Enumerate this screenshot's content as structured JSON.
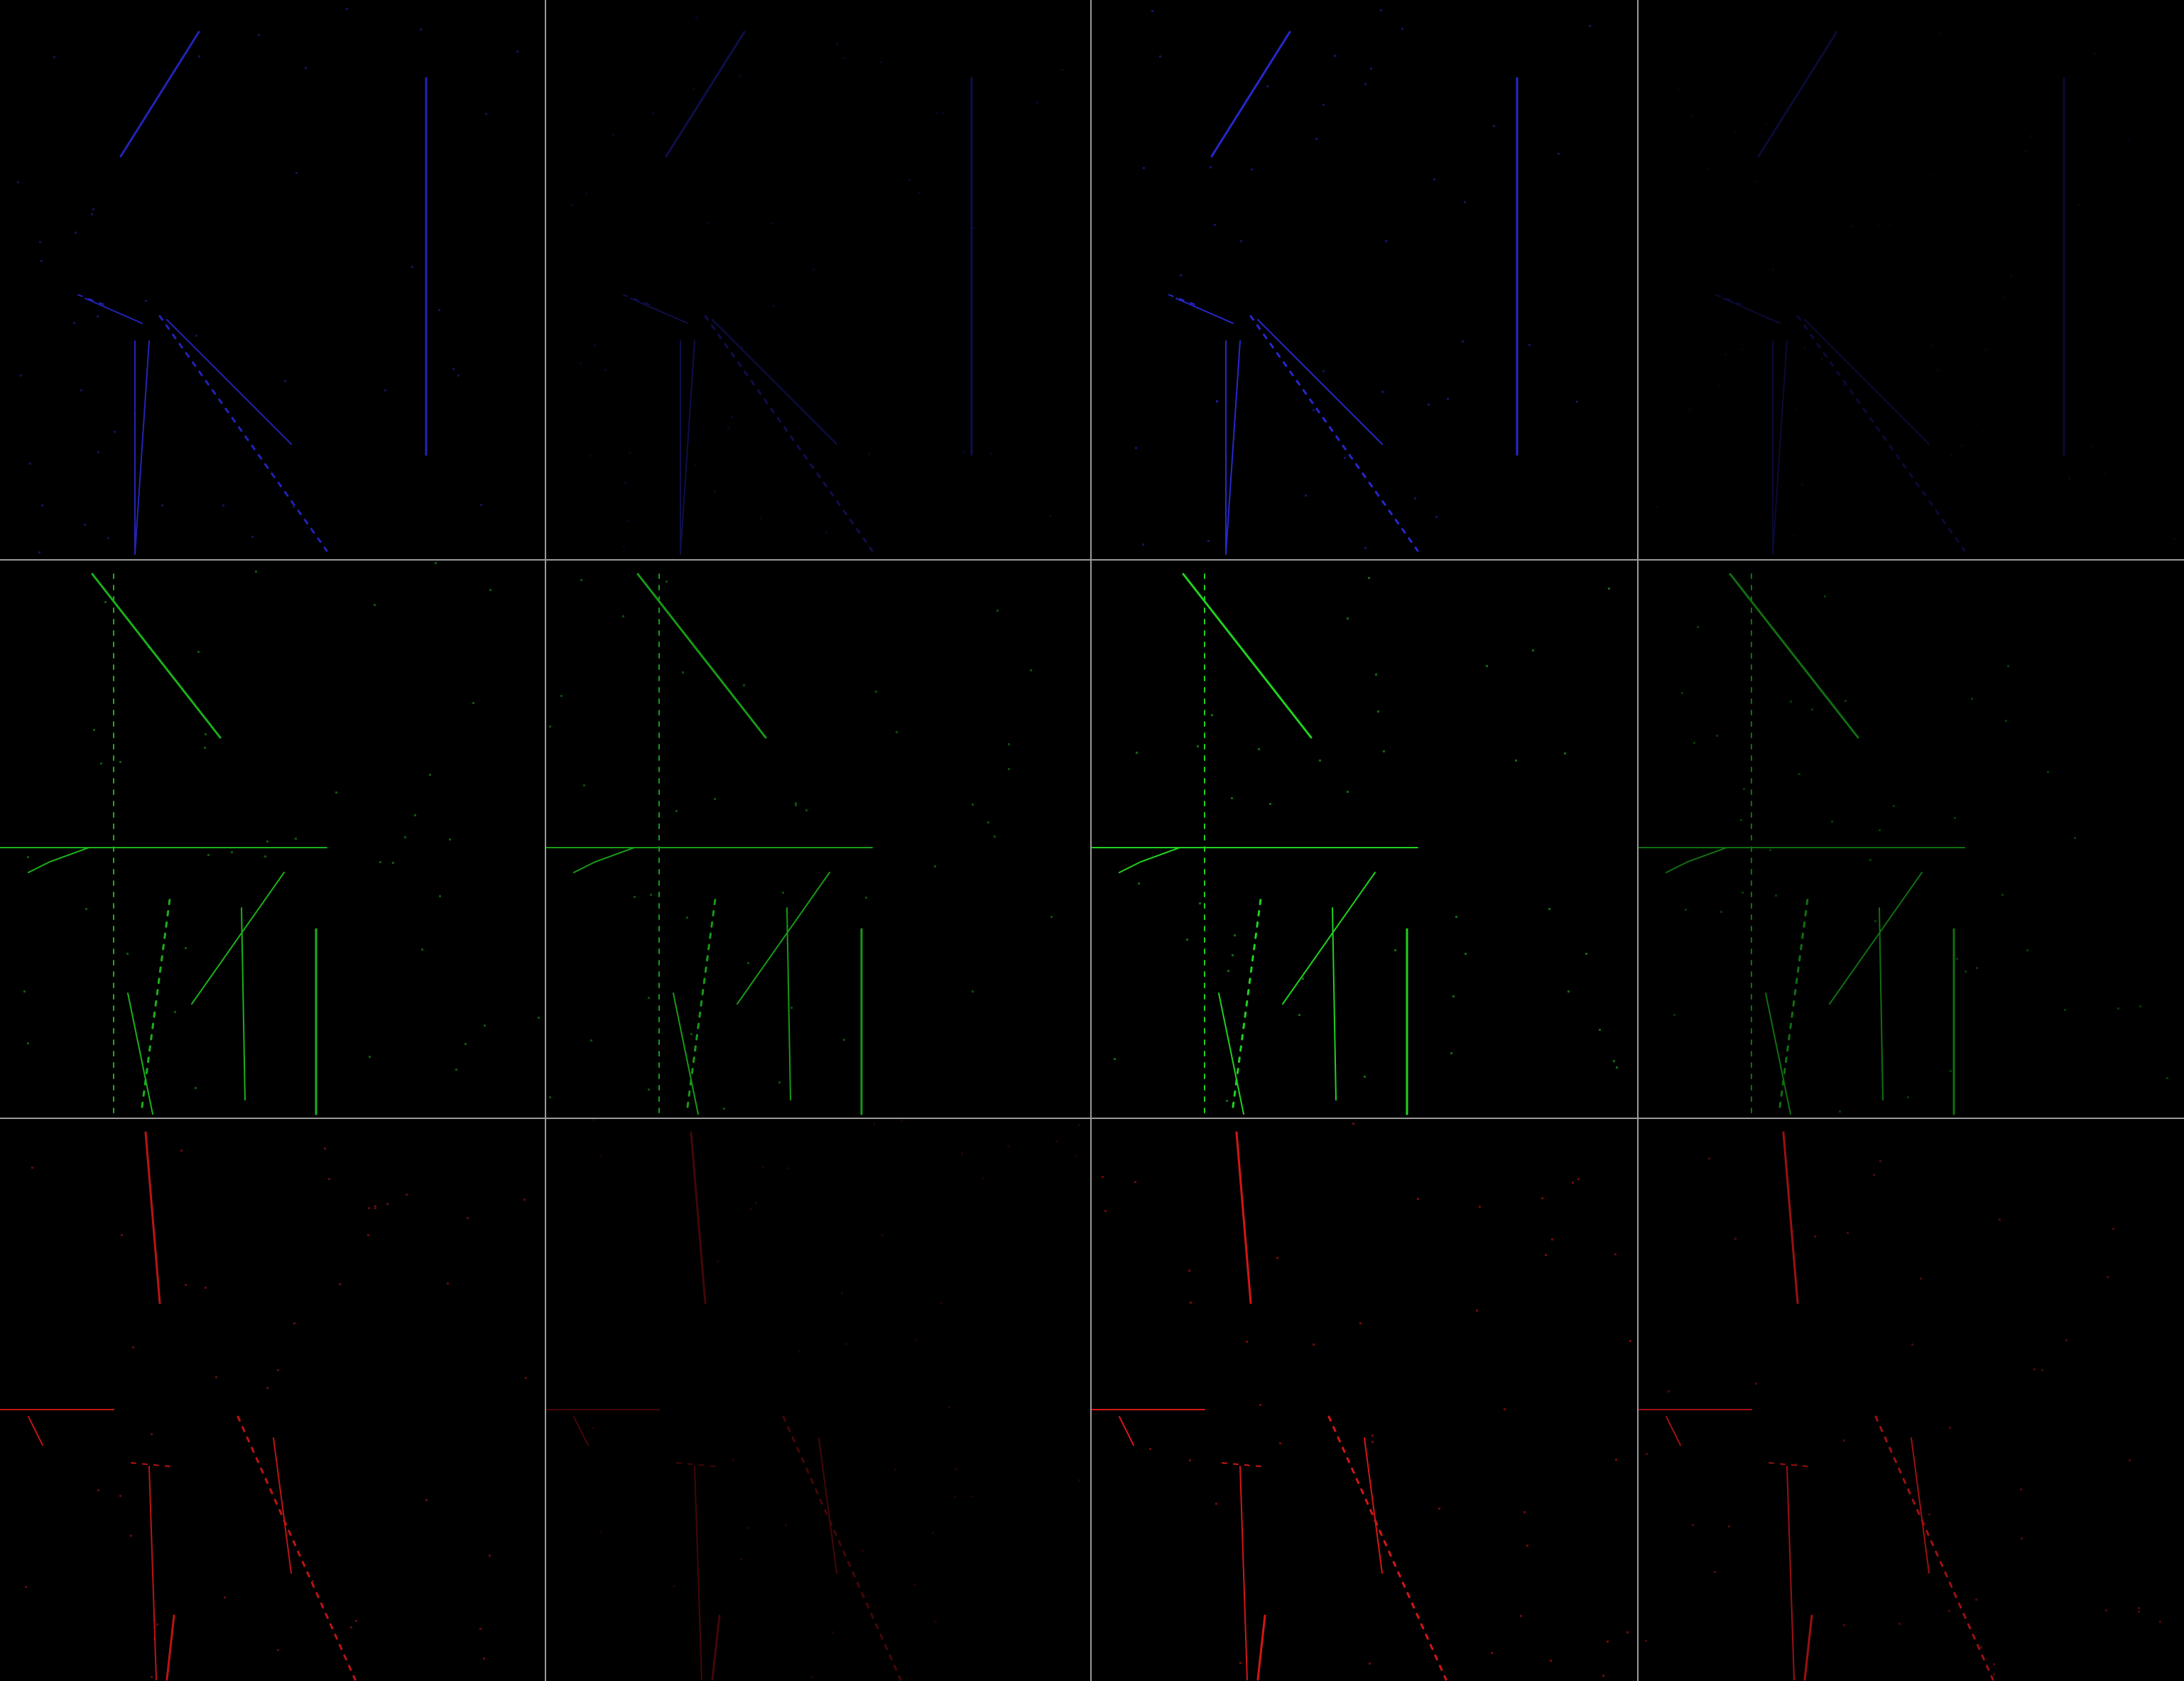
{
  "grid": {
    "rows": 3,
    "cols": 4,
    "background": "#000000",
    "divider_color": "#9a9a9a"
  },
  "channels": [
    {
      "name": "blue",
      "color": "#2a2ad8"
    },
    {
      "name": "green",
      "color": "#22dd22"
    },
    {
      "name": "red",
      "color": "#e01818"
    }
  ],
  "panels": [
    {
      "row": 0,
      "col": 0,
      "channel": "blue",
      "intensity": 0.85
    },
    {
      "row": 0,
      "col": 1,
      "channel": "blue",
      "intensity": 0.35
    },
    {
      "row": 0,
      "col": 2,
      "channel": "blue",
      "intensity": 0.95
    },
    {
      "row": 0,
      "col": 3,
      "channel": "blue",
      "intensity": 0.25
    },
    {
      "row": 1,
      "col": 0,
      "channel": "green",
      "intensity": 0.8
    },
    {
      "row": 1,
      "col": 1,
      "channel": "green",
      "intensity": 0.7
    },
    {
      "row": 1,
      "col": 2,
      "channel": "green",
      "intensity": 0.95
    },
    {
      "row": 1,
      "col": 3,
      "channel": "green",
      "intensity": 0.5
    },
    {
      "row": 2,
      "col": 0,
      "channel": "red",
      "intensity": 0.85
    },
    {
      "row": 2,
      "col": 1,
      "channel": "red",
      "intensity": 0.3
    },
    {
      "row": 2,
      "col": 2,
      "channel": "red",
      "intensity": 0.95
    },
    {
      "row": 2,
      "col": 3,
      "channel": "red",
      "intensity": 0.7
    }
  ]
}
